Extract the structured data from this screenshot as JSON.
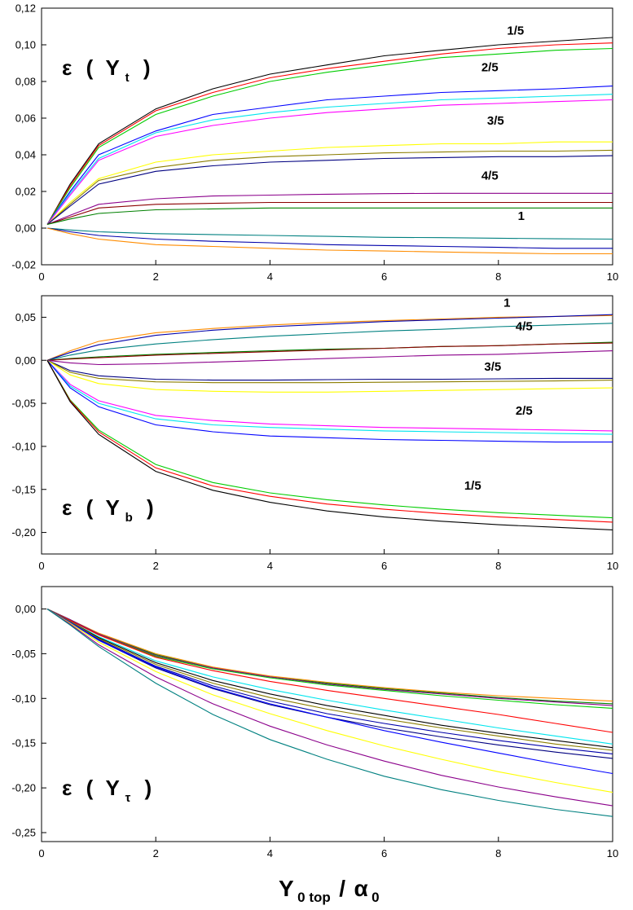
{
  "chart_data": [
    {
      "type": "line",
      "panel": "top",
      "ylabel_symbol": "ε",
      "ylabel_var": "Y",
      "ylabel_sub": "t",
      "xlim": [
        0,
        10
      ],
      "ylim": [
        -0.02,
        0.12
      ],
      "x_ticks": [
        {
          "v": 0,
          "label": "0"
        },
        {
          "v": 2,
          "label": "2"
        },
        {
          "v": 4,
          "label": "4"
        },
        {
          "v": 6,
          "label": "6"
        },
        {
          "v": 8,
          "label": "8"
        },
        {
          "v": 10,
          "label": "10"
        }
      ],
      "y_ticks": [
        {
          "v": -0.02,
          "label": "-0,02"
        },
        {
          "v": 0.0,
          "label": "0,00"
        },
        {
          "v": 0.02,
          "label": "0,02"
        },
        {
          "v": 0.04,
          "label": "0,04"
        },
        {
          "v": 0.06,
          "label": "0,06"
        },
        {
          "v": 0.08,
          "label": "0,08"
        },
        {
          "v": 0.1,
          "label": "0,10"
        },
        {
          "v": 0.12,
          "label": "0,12"
        }
      ],
      "annotations": [
        {
          "text": "1/5",
          "x": 8.3,
          "y": 0.1055
        },
        {
          "text": "2/5",
          "x": 7.85,
          "y": 0.0855
        },
        {
          "text": "3/5",
          "x": 7.95,
          "y": 0.0565
        },
        {
          "text": "4/5",
          "x": 7.85,
          "y": 0.0265
        },
        {
          "text": "1",
          "x": 8.4,
          "y": 0.0045
        }
      ],
      "x": [
        0.1,
        0.5,
        1,
        2,
        3,
        4,
        5,
        6,
        7,
        8,
        9,
        10
      ],
      "series": [
        {
          "color": "#000000",
          "values": [
            0.002,
            0.024,
            0.046,
            0.065,
            0.076,
            0.084,
            0.089,
            0.094,
            0.097,
            0.1,
            0.102,
            0.104
          ]
        },
        {
          "color": "#ff0000",
          "values": [
            0.002,
            0.023,
            0.045,
            0.064,
            0.074,
            0.082,
            0.087,
            0.091,
            0.095,
            0.098,
            0.1,
            0.101
          ]
        },
        {
          "color": "#00cc00",
          "values": [
            0.002,
            0.022,
            0.044,
            0.062,
            0.072,
            0.08,
            0.085,
            0.089,
            0.093,
            0.095,
            0.097,
            0.098
          ]
        },
        {
          "color": "#0000ff",
          "values": [
            0.002,
            0.02,
            0.04,
            0.053,
            0.062,
            0.066,
            0.07,
            0.072,
            0.074,
            0.075,
            0.076,
            0.0775
          ]
        },
        {
          "color": "#00e5ee",
          "values": [
            0.002,
            0.019,
            0.038,
            0.052,
            0.059,
            0.063,
            0.066,
            0.068,
            0.07,
            0.071,
            0.072,
            0.073
          ]
        },
        {
          "color": "#ff00ff",
          "values": [
            0.002,
            0.018,
            0.037,
            0.05,
            0.056,
            0.06,
            0.063,
            0.065,
            0.067,
            0.068,
            0.069,
            0.07
          ]
        },
        {
          "color": "#ffff00",
          "values": [
            0.002,
            0.014,
            0.027,
            0.036,
            0.04,
            0.042,
            0.044,
            0.045,
            0.046,
            0.046,
            0.047,
            0.047
          ]
        },
        {
          "color": "#8b7d00",
          "values": [
            0.002,
            0.013,
            0.026,
            0.033,
            0.037,
            0.039,
            0.04,
            0.041,
            0.0415,
            0.042,
            0.042,
            0.0425
          ]
        },
        {
          "color": "#000080",
          "values": [
            0.002,
            0.012,
            0.024,
            0.031,
            0.034,
            0.036,
            0.037,
            0.038,
            0.0385,
            0.039,
            0.039,
            0.0395
          ]
        },
        {
          "color": "#8b008b",
          "values": [
            0.002,
            0.007,
            0.013,
            0.016,
            0.0175,
            0.018,
            0.0185,
            0.0188,
            0.019,
            0.019,
            0.019,
            0.019
          ]
        },
        {
          "color": "#8b0000",
          "values": [
            0.002,
            0.006,
            0.011,
            0.013,
            0.0135,
            0.014,
            0.014,
            0.014,
            0.014,
            0.014,
            0.014,
            0.014
          ]
        },
        {
          "color": "#008000",
          "values": [
            0.002,
            0.005,
            0.008,
            0.01,
            0.0105,
            0.011,
            0.011,
            0.011,
            0.011,
            0.011,
            0.011,
            0.011
          ]
        },
        {
          "color": "#008080",
          "values": [
            0.0,
            -0.001,
            -0.002,
            -0.003,
            -0.0035,
            -0.004,
            -0.0045,
            -0.005,
            -0.0052,
            -0.0055,
            -0.0058,
            -0.006
          ]
        },
        {
          "color": "#0000aa",
          "values": [
            0.0,
            -0.002,
            -0.004,
            -0.006,
            -0.0072,
            -0.008,
            -0.009,
            -0.0095,
            -0.01,
            -0.0105,
            -0.011,
            -0.011
          ]
        },
        {
          "color": "#ff8c00",
          "values": [
            0.0,
            -0.003,
            -0.006,
            -0.009,
            -0.01,
            -0.011,
            -0.012,
            -0.0125,
            -0.013,
            -0.0135,
            -0.014,
            -0.014
          ]
        }
      ]
    },
    {
      "type": "line",
      "panel": "middle",
      "ylabel_symbol": "ε",
      "ylabel_var": "Y",
      "ylabel_sub": "b",
      "xlim": [
        0,
        10
      ],
      "ylim": [
        -0.225,
        0.075
      ],
      "x_ticks": [
        {
          "v": 0,
          "label": "0"
        },
        {
          "v": 2,
          "label": "2"
        },
        {
          "v": 4,
          "label": "4"
        },
        {
          "v": 6,
          "label": "6"
        },
        {
          "v": 8,
          "label": "8"
        },
        {
          "v": 10,
          "label": "10"
        }
      ],
      "y_ticks": [
        {
          "v": -0.2,
          "label": "-0,20"
        },
        {
          "v": -0.15,
          "label": "-0,15"
        },
        {
          "v": -0.1,
          "label": "-0,10"
        },
        {
          "v": -0.05,
          "label": "-0,05"
        },
        {
          "v": 0.0,
          "label": "0,00"
        },
        {
          "v": 0.05,
          "label": "0,05"
        }
      ],
      "annotations": [
        {
          "text": "1",
          "x": 8.15,
          "y": 0.062
        },
        {
          "text": "4/5",
          "x": 8.45,
          "y": 0.035
        },
        {
          "text": "3/5",
          "x": 7.9,
          "y": -0.012
        },
        {
          "text": "2/5",
          "x": 8.45,
          "y": -0.063
        },
        {
          "text": "1/5",
          "x": 7.55,
          "y": -0.15
        }
      ],
      "x": [
        0.1,
        0.5,
        1,
        2,
        3,
        4,
        5,
        6,
        7,
        8,
        9,
        10
      ],
      "series": [
        {
          "color": "#ff8c00",
          "values": [
            0.0,
            0.011,
            0.022,
            0.032,
            0.037,
            0.041,
            0.044,
            0.046,
            0.048,
            0.05,
            0.051,
            0.052
          ]
        },
        {
          "color": "#0000aa",
          "values": [
            0.0,
            0.009,
            0.018,
            0.029,
            0.035,
            0.039,
            0.042,
            0.045,
            0.047,
            0.049,
            0.051,
            0.053
          ]
        },
        {
          "color": "#008080",
          "values": [
            0.0,
            0.006,
            0.012,
            0.019,
            0.024,
            0.028,
            0.031,
            0.034,
            0.036,
            0.039,
            0.041,
            0.043
          ]
        },
        {
          "color": "#008000",
          "values": [
            0.0,
            0.002,
            0.004,
            0.007,
            0.009,
            0.011,
            0.013,
            0.014,
            0.016,
            0.017,
            0.019,
            0.021
          ]
        },
        {
          "color": "#8b0000",
          "values": [
            0.0,
            0.0015,
            0.003,
            0.006,
            0.008,
            0.01,
            0.012,
            0.014,
            0.016,
            0.017,
            0.019,
            0.02
          ]
        },
        {
          "color": "#8b008b",
          "values": [
            0.0,
            -0.003,
            -0.005,
            -0.004,
            -0.002,
            0.0,
            0.002,
            0.004,
            0.006,
            0.007,
            0.009,
            0.011
          ]
        },
        {
          "color": "#000080",
          "values": [
            0.0,
            -0.012,
            -0.018,
            -0.022,
            -0.023,
            -0.023,
            -0.0225,
            -0.022,
            -0.022,
            -0.0215,
            -0.021,
            -0.021
          ]
        },
        {
          "color": "#8b7d00",
          "values": [
            0.0,
            -0.014,
            -0.021,
            -0.025,
            -0.026,
            -0.026,
            -0.026,
            -0.0255,
            -0.025,
            -0.0245,
            -0.024,
            -0.023
          ]
        },
        {
          "color": "#ffff00",
          "values": [
            0.0,
            -0.017,
            -0.027,
            -0.034,
            -0.036,
            -0.037,
            -0.037,
            -0.036,
            -0.035,
            -0.034,
            -0.033,
            -0.032
          ]
        },
        {
          "color": "#ff00ff",
          "values": [
            0.0,
            -0.028,
            -0.047,
            -0.064,
            -0.07,
            -0.074,
            -0.076,
            -0.078,
            -0.079,
            -0.08,
            -0.081,
            -0.082
          ]
        },
        {
          "color": "#00e5ee",
          "values": [
            0.0,
            -0.03,
            -0.05,
            -0.068,
            -0.075,
            -0.078,
            -0.08,
            -0.082,
            -0.083,
            -0.084,
            -0.085,
            -0.086
          ]
        },
        {
          "color": "#0000ff",
          "values": [
            0.0,
            -0.032,
            -0.054,
            -0.075,
            -0.083,
            -0.088,
            -0.09,
            -0.092,
            -0.093,
            -0.094,
            -0.095,
            -0.095
          ]
        },
        {
          "color": "#00cc00",
          "values": [
            0.0,
            -0.046,
            -0.081,
            -0.121,
            -0.142,
            -0.154,
            -0.162,
            -0.168,
            -0.173,
            -0.177,
            -0.18,
            -0.183
          ]
        },
        {
          "color": "#ff0000",
          "values": [
            0.0,
            -0.047,
            -0.083,
            -0.125,
            -0.146,
            -0.158,
            -0.167,
            -0.173,
            -0.178,
            -0.182,
            -0.185,
            -0.188
          ]
        },
        {
          "color": "#000000",
          "values": [
            0.0,
            -0.048,
            -0.086,
            -0.129,
            -0.151,
            -0.165,
            -0.175,
            -0.182,
            -0.187,
            -0.191,
            -0.194,
            -0.197
          ]
        }
      ]
    },
    {
      "type": "line",
      "panel": "bottom",
      "ylabel_symbol": "ε",
      "ylabel_var": "Y",
      "ylabel_sub": "τ",
      "xlabel_var": "Y",
      "xlabel_sub": "0 top",
      "xlabel_sep": "/",
      "xlabel_den": "α",
      "xlabel_den_sub": "0",
      "xlim": [
        0,
        10
      ],
      "ylim": [
        -0.26,
        0.025
      ],
      "x_ticks": [
        {
          "v": 0,
          "label": "0"
        },
        {
          "v": 2,
          "label": "2"
        },
        {
          "v": 4,
          "label": "4"
        },
        {
          "v": 6,
          "label": "6"
        },
        {
          "v": 8,
          "label": "8"
        },
        {
          "v": 10,
          "label": "10"
        }
      ],
      "y_ticks": [
        {
          "v": -0.25,
          "label": "-0,25"
        },
        {
          "v": -0.2,
          "label": "-0,20"
        },
        {
          "v": -0.15,
          "label": "-0,15"
        },
        {
          "v": -0.1,
          "label": "-0,10"
        },
        {
          "v": -0.05,
          "label": "-0,05"
        },
        {
          "v": 0.0,
          "label": "0,00"
        }
      ],
      "annotations": [],
      "x": [
        0.1,
        0.5,
        1,
        2,
        3,
        4,
        5,
        6,
        7,
        8,
        9,
        10
      ],
      "series": [
        {
          "color": "#ff8c00",
          "values": [
            0.0,
            -0.012,
            -0.027,
            -0.05,
            -0.065,
            -0.075,
            -0.082,
            -0.088,
            -0.093,
            -0.097,
            -0.1,
            -0.103
          ]
        },
        {
          "color": "#008000",
          "values": [
            0.0,
            -0.012,
            -0.028,
            -0.051,
            -0.066,
            -0.076,
            -0.083,
            -0.089,
            -0.094,
            -0.099,
            -0.103,
            -0.106
          ]
        },
        {
          "color": "#8b008b",
          "values": [
            0.0,
            -0.012,
            -0.028,
            -0.052,
            -0.066,
            -0.076,
            -0.084,
            -0.09,
            -0.095,
            -0.1,
            -0.104,
            -0.108
          ]
        },
        {
          "color": "#00cc00",
          "values": [
            0.0,
            -0.013,
            -0.029,
            -0.053,
            -0.067,
            -0.077,
            -0.085,
            -0.091,
            -0.097,
            -0.102,
            -0.107,
            -0.111
          ]
        },
        {
          "color": "#ff0000",
          "values": [
            0.0,
            -0.013,
            -0.029,
            -0.054,
            -0.069,
            -0.081,
            -0.091,
            -0.1,
            -0.109,
            -0.118,
            -0.128,
            -0.138
          ]
        },
        {
          "color": "#00e5ee",
          "values": [
            0.0,
            -0.014,
            -0.031,
            -0.058,
            -0.076,
            -0.09,
            -0.102,
            -0.113,
            -0.123,
            -0.133,
            -0.142,
            -0.151
          ]
        },
        {
          "color": "#000000",
          "values": [
            0.0,
            -0.014,
            -0.032,
            -0.06,
            -0.08,
            -0.095,
            -0.108,
            -0.119,
            -0.13,
            -0.139,
            -0.147,
            -0.155
          ]
        },
        {
          "color": "#8b7d00",
          "values": [
            0.0,
            -0.014,
            -0.033,
            -0.062,
            -0.083,
            -0.099,
            -0.112,
            -0.123,
            -0.133,
            -0.142,
            -0.151,
            -0.158
          ]
        },
        {
          "color": "#0000aa",
          "values": [
            0.0,
            -0.015,
            -0.034,
            -0.064,
            -0.086,
            -0.103,
            -0.117,
            -0.128,
            -0.138,
            -0.147,
            -0.155,
            -0.162
          ]
        },
        {
          "color": "#000080",
          "values": [
            0.0,
            -0.015,
            -0.035,
            -0.066,
            -0.089,
            -0.107,
            -0.121,
            -0.133,
            -0.143,
            -0.152,
            -0.16,
            -0.167
          ]
        },
        {
          "color": "#0000ff",
          "values": [
            0.0,
            -0.015,
            -0.035,
            -0.065,
            -0.088,
            -0.106,
            -0.121,
            -0.136,
            -0.149,
            -0.161,
            -0.173,
            -0.184
          ]
        },
        {
          "color": "#ffff00",
          "values": [
            0.0,
            -0.016,
            -0.037,
            -0.07,
            -0.096,
            -0.117,
            -0.136,
            -0.153,
            -0.168,
            -0.182,
            -0.194,
            -0.205
          ]
        },
        {
          "color": "#8b008b",
          "values": [
            0.0,
            -0.017,
            -0.04,
            -0.076,
            -0.106,
            -0.131,
            -0.152,
            -0.17,
            -0.186,
            -0.199,
            -0.21,
            -0.22
          ]
        },
        {
          "color": "#008080",
          "values": [
            0.0,
            -0.018,
            -0.042,
            -0.083,
            -0.118,
            -0.146,
            -0.168,
            -0.187,
            -0.202,
            -0.214,
            -0.224,
            -0.232
          ]
        }
      ]
    }
  ]
}
